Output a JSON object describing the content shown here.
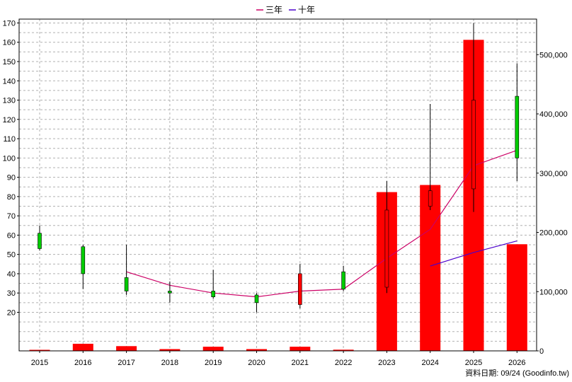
{
  "chart_data": {
    "type": "candlestick",
    "legend": [
      {
        "name": "三年",
        "color": "#cc0066"
      },
      {
        "name": "十年",
        "color": "#4b00cc"
      }
    ],
    "legend_position": "top-center",
    "grid": true,
    "categories": [
      "2015",
      "2016",
      "2017",
      "2018",
      "2019",
      "2020",
      "2021",
      "2022",
      "2023",
      "2024",
      "2025",
      "2026"
    ],
    "price_axis": {
      "ylim": [
        0,
        172
      ],
      "ticks": [
        20,
        30,
        40,
        50,
        60,
        70,
        80,
        90,
        100,
        110,
        120,
        130,
        140,
        150,
        160,
        170
      ]
    },
    "volume_axis": {
      "ylim": [
        0,
        560000
      ],
      "ticks": [
        0,
        100000,
        200000,
        300000,
        400000,
        500000
      ],
      "tick_labels": [
        "0",
        "100,000",
        "200,000",
        "300,000",
        "400,000",
        "500,000"
      ]
    },
    "candles": [
      {
        "year": "2015",
        "open": 53,
        "close": 61,
        "high": 65,
        "low": 52
      },
      {
        "year": "2016",
        "open": 40,
        "close": 54,
        "high": 55,
        "low": 32
      },
      {
        "year": "2017",
        "open": 31,
        "close": 38,
        "high": 55,
        "low": 29
      },
      {
        "year": "2018",
        "open": 30,
        "close": 31,
        "high": 36,
        "low": 25
      },
      {
        "year": "2019",
        "open": 28,
        "close": 31,
        "high": 42,
        "low": 27
      },
      {
        "year": "2020",
        "open": 25,
        "close": 29,
        "high": 30,
        "low": 20
      },
      {
        "year": "2021",
        "open": 40,
        "close": 24,
        "high": 45,
        "low": 22
      },
      {
        "year": "2022",
        "open": 32,
        "close": 41,
        "high": 44,
        "low": 31
      },
      {
        "year": "2023",
        "open": 73,
        "close": 33,
        "high": 88,
        "low": 30
      },
      {
        "year": "2024",
        "open": 83,
        "close": 75,
        "high": 128,
        "low": 73
      },
      {
        "year": "2025",
        "open": 130,
        "close": 84,
        "high": 170,
        "low": 72
      },
      {
        "year": "2026",
        "open": 100,
        "close": 132,
        "high": 149,
        "low": 88
      }
    ],
    "colors": {
      "up": "#00cc00",
      "down": "#ff0000",
      "wick": "#000000",
      "volume": "#ff0000"
    },
    "series": [
      {
        "name": "三年",
        "x": [
          "2017",
          "2018",
          "2019",
          "2020",
          "2021",
          "2022",
          "2023",
          "2024",
          "2025",
          "2026"
        ],
        "values": [
          41,
          34,
          30,
          28,
          31,
          32,
          48,
          63,
          96,
          104
        ]
      },
      {
        "name": "十年",
        "x": [
          "2024",
          "2025",
          "2026"
        ],
        "values": [
          44,
          51,
          57
        ]
      }
    ],
    "volume": [
      0,
      12000,
      8000,
      3000,
      7000,
      3000,
      7000,
      2000,
      268000,
      280000,
      525000,
      180000
    ]
  },
  "footer": {
    "text": "資料日期: 09/24  (Goodinfo.tw)"
  }
}
